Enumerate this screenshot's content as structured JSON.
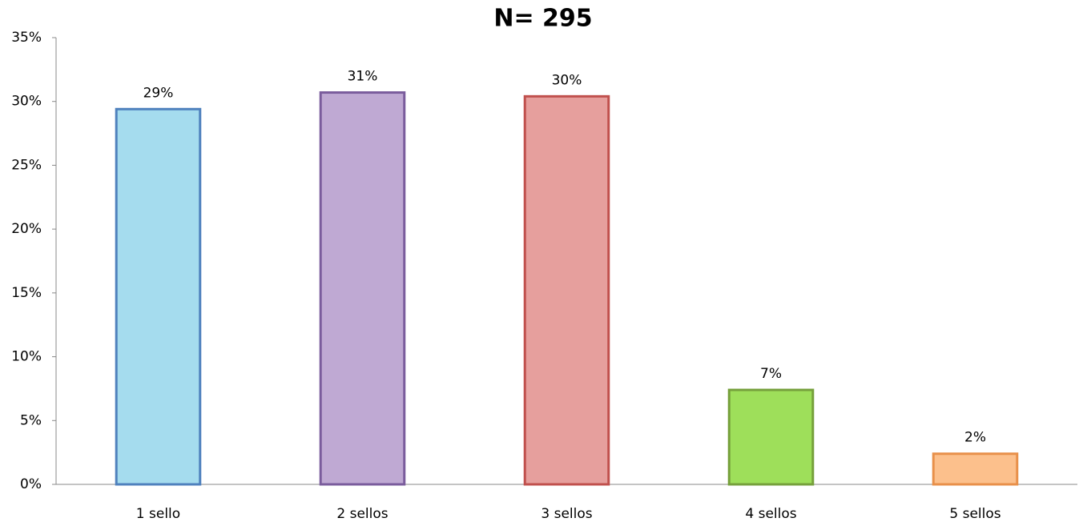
{
  "chart_data": {
    "type": "bar",
    "title": "N= 295",
    "categories": [
      "1 sello",
      "2 sellos",
      "3 sellos",
      "4 sellos",
      "5 sellos"
    ],
    "values": [
      29.4,
      30.7,
      30.4,
      7.4,
      2.4
    ],
    "value_labels": [
      "29%",
      "31%",
      "30%",
      "7%",
      "2%"
    ],
    "colors": [
      "#a5dcee",
      "#bfa9d3",
      "#e69f9d",
      "#9edf5a",
      "#fcc08c"
    ],
    "edge_colors": [
      "#4f81bd",
      "#7a5c9c",
      "#c0504d",
      "#76a03c",
      "#e8904a"
    ],
    "ylim": [
      0,
      35
    ],
    "yticks": [
      {
        "value": 0,
        "label": "0%"
      },
      {
        "value": 5,
        "label": "5%"
      },
      {
        "value": 10,
        "label": "10%"
      },
      {
        "value": 15,
        "label": "15%"
      },
      {
        "value": 20,
        "label": "20%"
      },
      {
        "value": 25,
        "label": "25%"
      },
      {
        "value": 30,
        "label": "30%"
      },
      {
        "value": 35,
        "label": "35%"
      }
    ],
    "grid": false
  }
}
